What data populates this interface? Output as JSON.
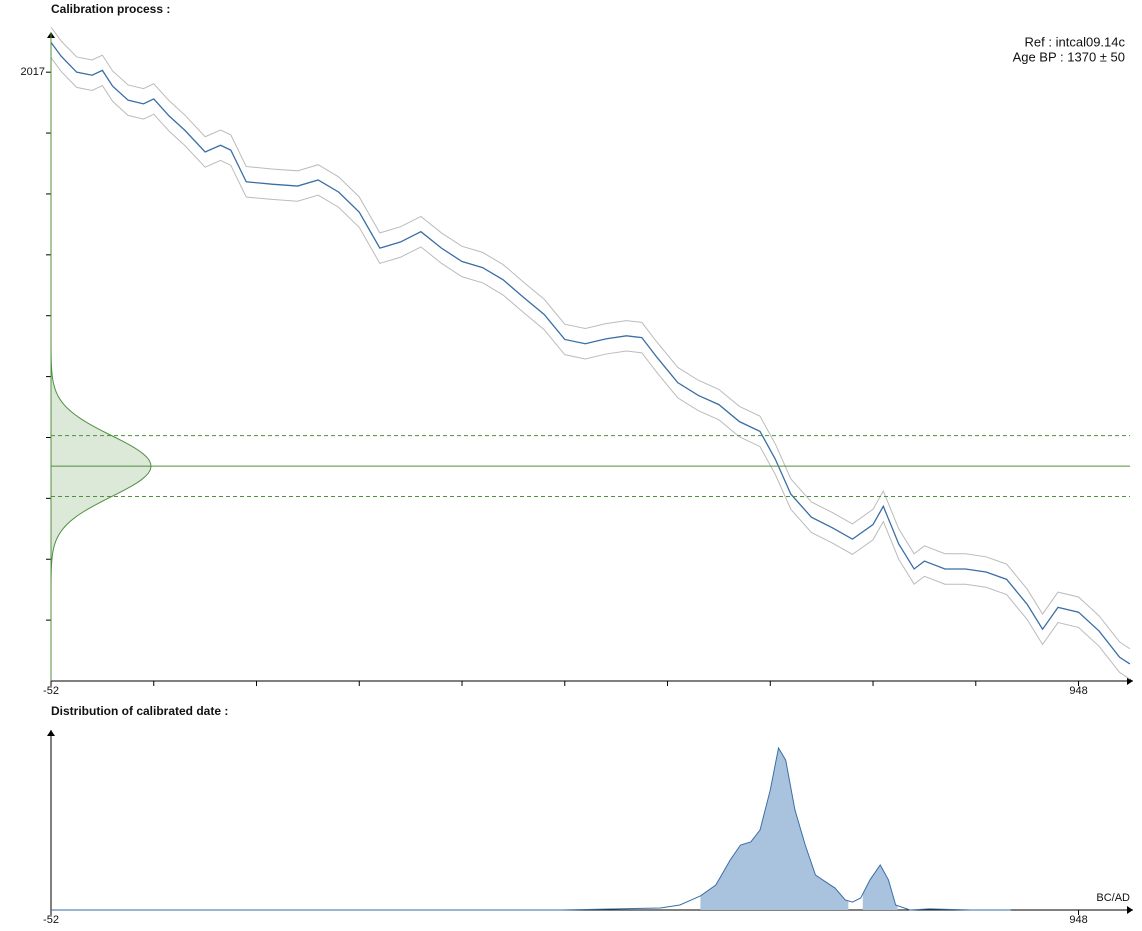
{
  "chart_data": [
    {
      "type": "line",
      "title": "Calibration process :",
      "annotations": [
        "Ref : intcal09.14c",
        "Age BP : 1370 ± 50"
      ],
      "x": [
        -52,
        -42,
        -27,
        -12,
        -2,
        8,
        23,
        38,
        48,
        63,
        78,
        98,
        113,
        123,
        138,
        163,
        188,
        208,
        228,
        248,
        268,
        288,
        308,
        328,
        348,
        368,
        388,
        408,
        428,
        448,
        468,
        488,
        508,
        523,
        538,
        558,
        578,
        598,
        618,
        638,
        653,
        668,
        688,
        708,
        728,
        748,
        758,
        773,
        788,
        798,
        818,
        838,
        858,
        878,
        898,
        913,
        928,
        948,
        968,
        988,
        998
      ],
      "values": [
        2066,
        2043,
        2017,
        2012,
        2020,
        1994,
        1971,
        1965,
        1973,
        1945,
        1922,
        1886,
        1897,
        1889,
        1837,
        1833,
        1830,
        1840,
        1820,
        1787,
        1728,
        1738,
        1755,
        1728,
        1706,
        1696,
        1676,
        1647,
        1619,
        1578,
        1571,
        1579,
        1584,
        1581,
        1548,
        1507,
        1486,
        1471,
        1443,
        1427,
        1381,
        1324,
        1286,
        1269,
        1250,
        1274,
        1304,
        1242,
        1201,
        1214,
        1201,
        1201,
        1196,
        1184,
        1143,
        1102,
        1138,
        1130,
        1099,
        1056,
        1045
      ],
      "color": "#3a6ea5",
      "envelope": 25,
      "envelope_color": "#bbbbbb",
      "measurement": {
        "mean": 1370,
        "sigma": 50,
        "color": "#4f8f3f"
      },
      "xlim": [
        -52,
        1001
      ],
      "ylim": [
        1017,
        2083
      ],
      "xticks": [
        -52,
        948
      ],
      "xminor_ticks": [
        48,
        148,
        248,
        348,
        448,
        548,
        648,
        748,
        848
      ],
      "yticks": [
        2017
      ],
      "yminor_ticks": [
        1917,
        1817,
        1717,
        1617,
        1517,
        1417,
        1317,
        1217,
        1117
      ]
    },
    {
      "type": "area",
      "title": "Distribution of calibrated date :",
      "xlabel": "BC/AD",
      "x": [
        -52,
        444,
        541,
        560,
        580,
        595,
        609,
        619,
        629,
        638,
        648,
        656,
        663,
        672,
        682,
        692,
        702,
        711,
        721,
        728,
        736,
        745,
        755,
        763,
        770,
        784,
        803,
        843,
        882
      ],
      "values": [
        0,
        0,
        0.011,
        0.028,
        0.078,
        0.139,
        0.278,
        0.361,
        0.378,
        0.444,
        0.667,
        0.9,
        0.833,
        0.556,
        0.361,
        0.194,
        0.156,
        0.122,
        0.056,
        0.044,
        0.067,
        0.167,
        0.25,
        0.167,
        0.028,
        0,
        0.006,
        0,
        0
      ],
      "color": "#3a6ea5",
      "fill": "#a9c3df",
      "highlight_ranges": [
        [
          580,
          724
        ],
        [
          738,
          772
        ]
      ],
      "xlim": [
        -52,
        1001
      ],
      "ylim": [
        0,
        1
      ],
      "xticks": [
        -52,
        948
      ]
    }
  ]
}
